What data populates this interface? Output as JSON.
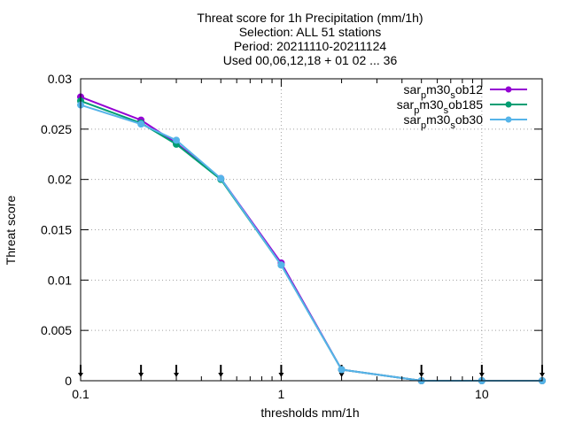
{
  "chart_data": {
    "type": "line",
    "title_lines": [
      "Threat score  for 1h Precipitation (mm/1h)",
      "Selection: ALL      51 stations",
      "Period: 20211110-20211124",
      "Used 00,06,12,18 + 01 02 ... 36"
    ],
    "xlabel": "thresholds mm/1h",
    "ylabel": "Threat score",
    "x_scale": "log",
    "xlim": [
      0.1,
      20
    ],
    "ylim": [
      0,
      0.03
    ],
    "x_ticks": [
      {
        "value": 0.1,
        "label": "0.1"
      },
      {
        "value": 1,
        "label": "1"
      },
      {
        "value": 10,
        "label": "10"
      }
    ],
    "y_ticks": [
      {
        "value": 0,
        "label": "0"
      },
      {
        "value": 0.005,
        "label": "0.005"
      },
      {
        "value": 0.01,
        "label": "0.01"
      },
      {
        "value": 0.015,
        "label": "0.015"
      },
      {
        "value": 0.02,
        "label": "0.02"
      },
      {
        "value": 0.025,
        "label": "0.025"
      },
      {
        "value": 0.03,
        "label": "0.03"
      }
    ],
    "grid": true,
    "legend_position": "top-right",
    "x": [
      0.1,
      0.2,
      0.3,
      0.5,
      1,
      2,
      5,
      10,
      20
    ],
    "series": [
      {
        "name_parts": [
          "sar",
          "p",
          "m30",
          "s",
          "ob12"
        ],
        "color": "#9400d3",
        "values": [
          0.0282,
          0.0259,
          0.0236,
          0.0201,
          0.0117,
          0.0011,
          0.0,
          0.0,
          0.0
        ]
      },
      {
        "name_parts": [
          "sar",
          "p",
          "m30",
          "s",
          "ob185"
        ],
        "color": "#009e73",
        "values": [
          0.0278,
          0.0256,
          0.0235,
          0.02,
          0.0115,
          0.0011,
          0.0,
          0.0,
          0.0
        ]
      },
      {
        "name_parts": [
          "sar",
          "p",
          "m30",
          "s",
          "ob30"
        ],
        "color": "#56b4e9",
        "values": [
          0.0274,
          0.0255,
          0.0239,
          0.0201,
          0.0115,
          0.0011,
          0.0,
          0.0,
          0.0
        ]
      }
    ],
    "marker_thresholds": [
      0.1,
      0.2,
      0.3,
      0.5,
      1,
      2,
      5,
      10,
      20
    ]
  }
}
